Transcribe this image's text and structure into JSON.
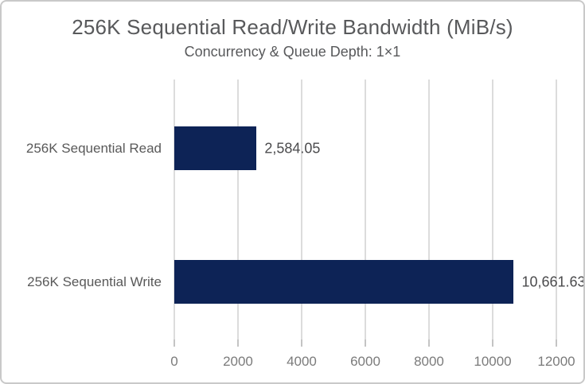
{
  "chart": {
    "title": "256K Sequential Read/Write Bandwidth (MiB/s)",
    "subtitle": "Concurrency & Queue Depth: 1×1"
  },
  "chart_data": {
    "type": "bar",
    "orientation": "horizontal",
    "title": "256K Sequential Read/Write Bandwidth (MiB/s)",
    "subtitle": "Concurrency & Queue Depth: 1×1",
    "categories": [
      "256K Sequential Read",
      "256K Sequential Write"
    ],
    "values": [
      2584.05,
      10661.63
    ],
    "value_labels": [
      "2,584.05",
      "10,661.63"
    ],
    "xlabel": "",
    "ylabel": "",
    "xlim": [
      0,
      12000
    ],
    "xticks": [
      0,
      2000,
      4000,
      6000,
      8000,
      10000,
      12000
    ],
    "xtick_labels": [
      "0",
      "2000",
      "4000",
      "6000",
      "8000",
      "10000",
      "12000"
    ],
    "grid": "vertical-only",
    "legend": false,
    "colors": {
      "bar": "#0d2356",
      "gridline": "#dcdcdc",
      "title_text": "#58595b",
      "category_text": "#595959",
      "value_text": "#4b4b4d",
      "tick_text": "#7b7b7b",
      "card_border": "#c9c9c9",
      "background": "#ffffff"
    }
  }
}
